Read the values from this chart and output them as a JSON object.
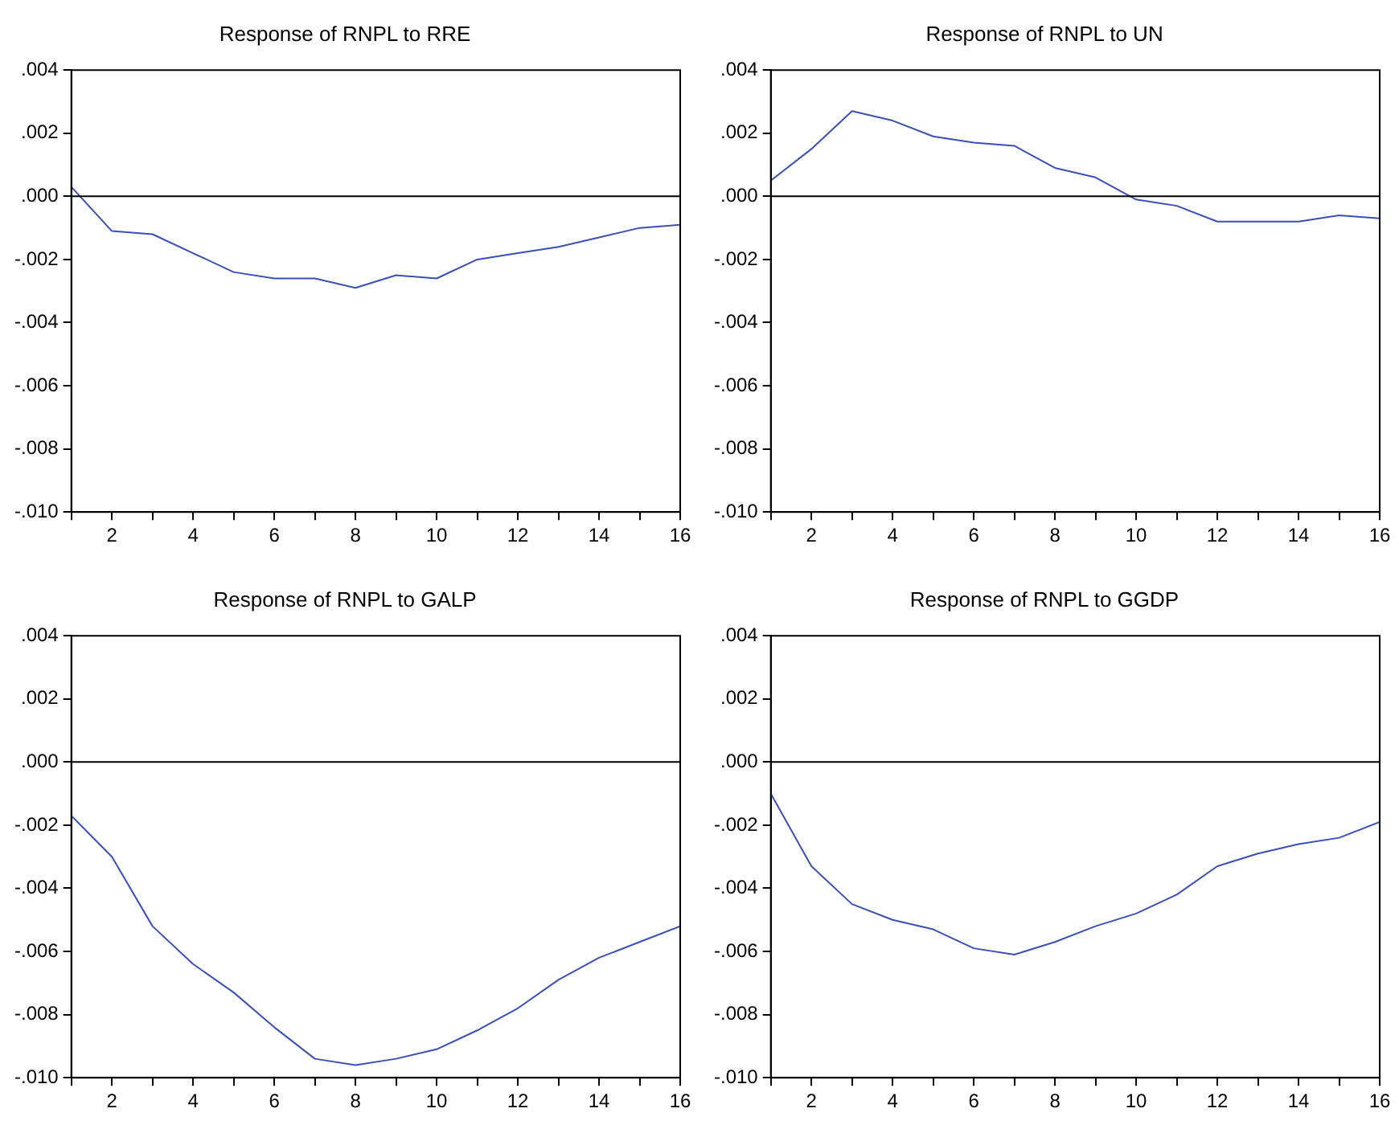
{
  "chart_data": [
    {
      "type": "line",
      "title": "Response of RNPL to RRE",
      "x": [
        1,
        2,
        3,
        4,
        5,
        6,
        7,
        8,
        9,
        10,
        11,
        12,
        13,
        14,
        15,
        16
      ],
      "series": [
        {
          "color": "#3b4fb8",
          "values": [
            0.0003,
            -0.0011,
            -0.0012,
            -0.0018,
            -0.0024,
            -0.0026,
            -0.0026,
            -0.0029,
            -0.0025,
            -0.0026,
            -0.002,
            -0.0018,
            -0.0016,
            -0.0013,
            -0.001,
            -0.0009
          ]
        }
      ],
      "xlim": [
        1,
        16
      ],
      "xticks": [
        {
          "value": 1,
          "label": null
        },
        2,
        {
          "value": 3,
          "label": null
        },
        4,
        {
          "value": 5,
          "label": null
        },
        6,
        {
          "value": 7,
          "label": null
        },
        8,
        {
          "value": 9,
          "label": null
        },
        10,
        {
          "value": 11,
          "label": null
        },
        12,
        {
          "value": 13,
          "label": null
        },
        14,
        {
          "value": 15,
          "label": null
        },
        16
      ],
      "ylim": [
        -0.01,
        0.004
      ],
      "yticks": [
        {
          "value": -0.01,
          "label": "-.010"
        },
        {
          "value": -0.008,
          "label": "-.008"
        },
        {
          "value": -0.006,
          "label": "-.006"
        },
        {
          "value": -0.004,
          "label": "-.004"
        },
        {
          "value": -0.002,
          "label": "-.002"
        },
        {
          "value": 0,
          "label": ".000"
        },
        {
          "value": 0.002,
          "label": ".002"
        },
        {
          "value": 0.004,
          "label": ".004"
        }
      ],
      "ref_lines": [
        {
          "axis": "y",
          "value": 0,
          "color": "#000000"
        }
      ],
      "grid": false,
      "legend": false,
      "marker": "none",
      "line_style": "solid"
    },
    {
      "type": "line",
      "title": "Response of RNPL to UN",
      "x": [
        1,
        2,
        3,
        4,
        5,
        6,
        7,
        8,
        9,
        10,
        11,
        12,
        13,
        14,
        15,
        16
      ],
      "series": [
        {
          "color": "#3b4fb8",
          "values": [
            0.0005,
            0.0015,
            0.0027,
            0.0024,
            0.0019,
            0.0017,
            0.0016,
            0.0009,
            0.0006,
            -0.0001,
            -0.0003,
            -0.0008,
            -0.0008,
            -0.0008,
            -0.0006,
            -0.0007
          ]
        }
      ],
      "xlim": [
        1,
        16
      ],
      "xticks": [
        {
          "value": 1,
          "label": null
        },
        2,
        {
          "value": 3,
          "label": null
        },
        4,
        {
          "value": 5,
          "label": null
        },
        6,
        {
          "value": 7,
          "label": null
        },
        8,
        {
          "value": 9,
          "label": null
        },
        10,
        {
          "value": 11,
          "label": null
        },
        12,
        {
          "value": 13,
          "label": null
        },
        14,
        {
          "value": 15,
          "label": null
        },
        16
      ],
      "ylim": [
        -0.01,
        0.004
      ],
      "yticks": [
        {
          "value": -0.01,
          "label": "-.010"
        },
        {
          "value": -0.008,
          "label": "-.008"
        },
        {
          "value": -0.006,
          "label": "-.006"
        },
        {
          "value": -0.004,
          "label": "-.004"
        },
        {
          "value": -0.002,
          "label": "-.002"
        },
        {
          "value": 0,
          "label": ".000"
        },
        {
          "value": 0.002,
          "label": ".002"
        },
        {
          "value": 0.004,
          "label": ".004"
        }
      ],
      "ref_lines": [
        {
          "axis": "y",
          "value": 0,
          "color": "#000000"
        }
      ],
      "grid": false,
      "legend": false,
      "marker": "none",
      "line_style": "solid"
    },
    {
      "type": "line",
      "title": "Response of RNPL to GALP",
      "x": [
        1,
        2,
        3,
        4,
        5,
        6,
        7,
        8,
        9,
        10,
        11,
        12,
        13,
        14,
        15,
        16
      ],
      "series": [
        {
          "color": "#3b4fb8",
          "values": [
            -0.0017,
            -0.003,
            -0.0052,
            -0.0064,
            -0.0073,
            -0.0084,
            -0.0094,
            -0.0096,
            -0.0094,
            -0.0091,
            -0.0085,
            -0.0078,
            -0.0069,
            -0.0062,
            -0.0057,
            -0.0052
          ]
        }
      ],
      "xlim": [
        1,
        16
      ],
      "xticks": [
        {
          "value": 1,
          "label": null
        },
        2,
        {
          "value": 3,
          "label": null
        },
        4,
        {
          "value": 5,
          "label": null
        },
        6,
        {
          "value": 7,
          "label": null
        },
        8,
        {
          "value": 9,
          "label": null
        },
        10,
        {
          "value": 11,
          "label": null
        },
        12,
        {
          "value": 13,
          "label": null
        },
        14,
        {
          "value": 15,
          "label": null
        },
        16
      ],
      "ylim": [
        -0.01,
        0.004
      ],
      "yticks": [
        {
          "value": -0.01,
          "label": "-.010"
        },
        {
          "value": -0.008,
          "label": "-.008"
        },
        {
          "value": -0.006,
          "label": "-.006"
        },
        {
          "value": -0.004,
          "label": "-.004"
        },
        {
          "value": -0.002,
          "label": "-.002"
        },
        {
          "value": 0,
          "label": ".000"
        },
        {
          "value": 0.002,
          "label": ".002"
        },
        {
          "value": 0.004,
          "label": ".004"
        }
      ],
      "ref_lines": [
        {
          "axis": "y",
          "value": 0,
          "color": "#000000"
        }
      ],
      "grid": false,
      "legend": false,
      "marker": "none",
      "line_style": "solid"
    },
    {
      "type": "line",
      "title": "Response of RNPL to GGDP",
      "x": [
        1,
        2,
        3,
        4,
        5,
        6,
        7,
        8,
        9,
        10,
        11,
        12,
        13,
        14,
        15,
        16
      ],
      "series": [
        {
          "color": "#3b4fb8",
          "values": [
            -0.001,
            -0.0033,
            -0.0045,
            -0.005,
            -0.0053,
            -0.0059,
            -0.0061,
            -0.0057,
            -0.0052,
            -0.0048,
            -0.0042,
            -0.0033,
            -0.0029,
            -0.0026,
            -0.0024,
            -0.0019
          ]
        }
      ],
      "xlim": [
        1,
        16
      ],
      "xticks": [
        {
          "value": 1,
          "label": null
        },
        2,
        {
          "value": 3,
          "label": null
        },
        4,
        {
          "value": 5,
          "label": null
        },
        6,
        {
          "value": 7,
          "label": null
        },
        8,
        {
          "value": 9,
          "label": null
        },
        10,
        {
          "value": 11,
          "label": null
        },
        12,
        {
          "value": 13,
          "label": null
        },
        14,
        {
          "value": 15,
          "label": null
        },
        16
      ],
      "ylim": [
        -0.01,
        0.004
      ],
      "yticks": [
        {
          "value": -0.01,
          "label": "-.010"
        },
        {
          "value": -0.008,
          "label": "-.008"
        },
        {
          "value": -0.006,
          "label": "-.006"
        },
        {
          "value": -0.004,
          "label": "-.004"
        },
        {
          "value": -0.002,
          "label": "-.002"
        },
        {
          "value": 0,
          "label": ".000"
        },
        {
          "value": 0.002,
          "label": ".002"
        },
        {
          "value": 0.004,
          "label": ".004"
        }
      ],
      "ref_lines": [
        {
          "axis": "y",
          "value": 0,
          "color": "#000000"
        }
      ],
      "grid": false,
      "legend": false,
      "marker": "none",
      "line_style": "solid"
    }
  ]
}
